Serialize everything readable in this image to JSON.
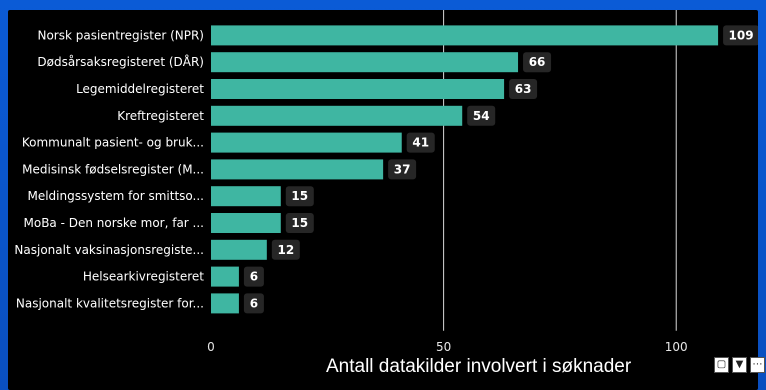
{
  "chart_data": {
    "type": "bar",
    "orientation": "horizontal",
    "categories": [
      "Norsk pasientregister (NPR)",
      "Dødsårsaksregisteret (DÅR)",
      "Legemiddelregisteret",
      "Kreftregisteret",
      "Kommunalt pasient- og bruk...",
      "Medisinsk fødselsregister (M...",
      "Meldingssystem for smittso...",
      "MoBa - Den norske mor, far ...",
      "Nasjonalt vaksinasjonsregiste...",
      "Helsearkivregisteret",
      "Nasjonalt kvalitetsregister for..."
    ],
    "values": [
      109,
      66,
      63,
      54,
      41,
      37,
      15,
      15,
      12,
      6,
      6
    ],
    "xlabel": "Antall datakilder involvert i søknader",
    "xlim": [
      0,
      115
    ],
    "xticks": [
      0,
      50,
      100
    ],
    "grid": true,
    "bar_color": "#3fb6a2",
    "value_badge_color": "#262626"
  },
  "toolbar": {
    "icons": [
      "focus-mode-icon",
      "filter-icon",
      "more-options-icon"
    ]
  }
}
